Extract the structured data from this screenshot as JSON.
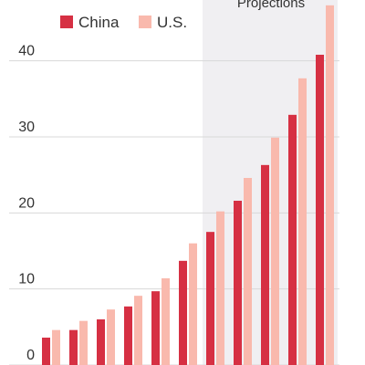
{
  "chart_data": {
    "type": "bar",
    "annotation": "Projections",
    "categories": [
      null,
      null,
      null,
      null,
      null,
      null,
      null,
      null,
      null,
      null,
      null
    ],
    "series": [
      {
        "name": "China",
        "color": "#d63043",
        "values": [
          3.6,
          4.6,
          6.0,
          7.7,
          9.7,
          13.7,
          17.5,
          21.6,
          26.3,
          32.9,
          40.8
        ]
      },
      {
        "name": "U.S.",
        "color": "#f9b9ad",
        "values": [
          4.6,
          5.8,
          7.3,
          9.1,
          11.4,
          16.0,
          20.2,
          24.6,
          29.9,
          37.7,
          47.3
        ]
      }
    ],
    "ylim": [
      0,
      48
    ],
    "yticks": [
      0,
      10,
      20,
      30,
      40
    ],
    "grid": true
  }
}
